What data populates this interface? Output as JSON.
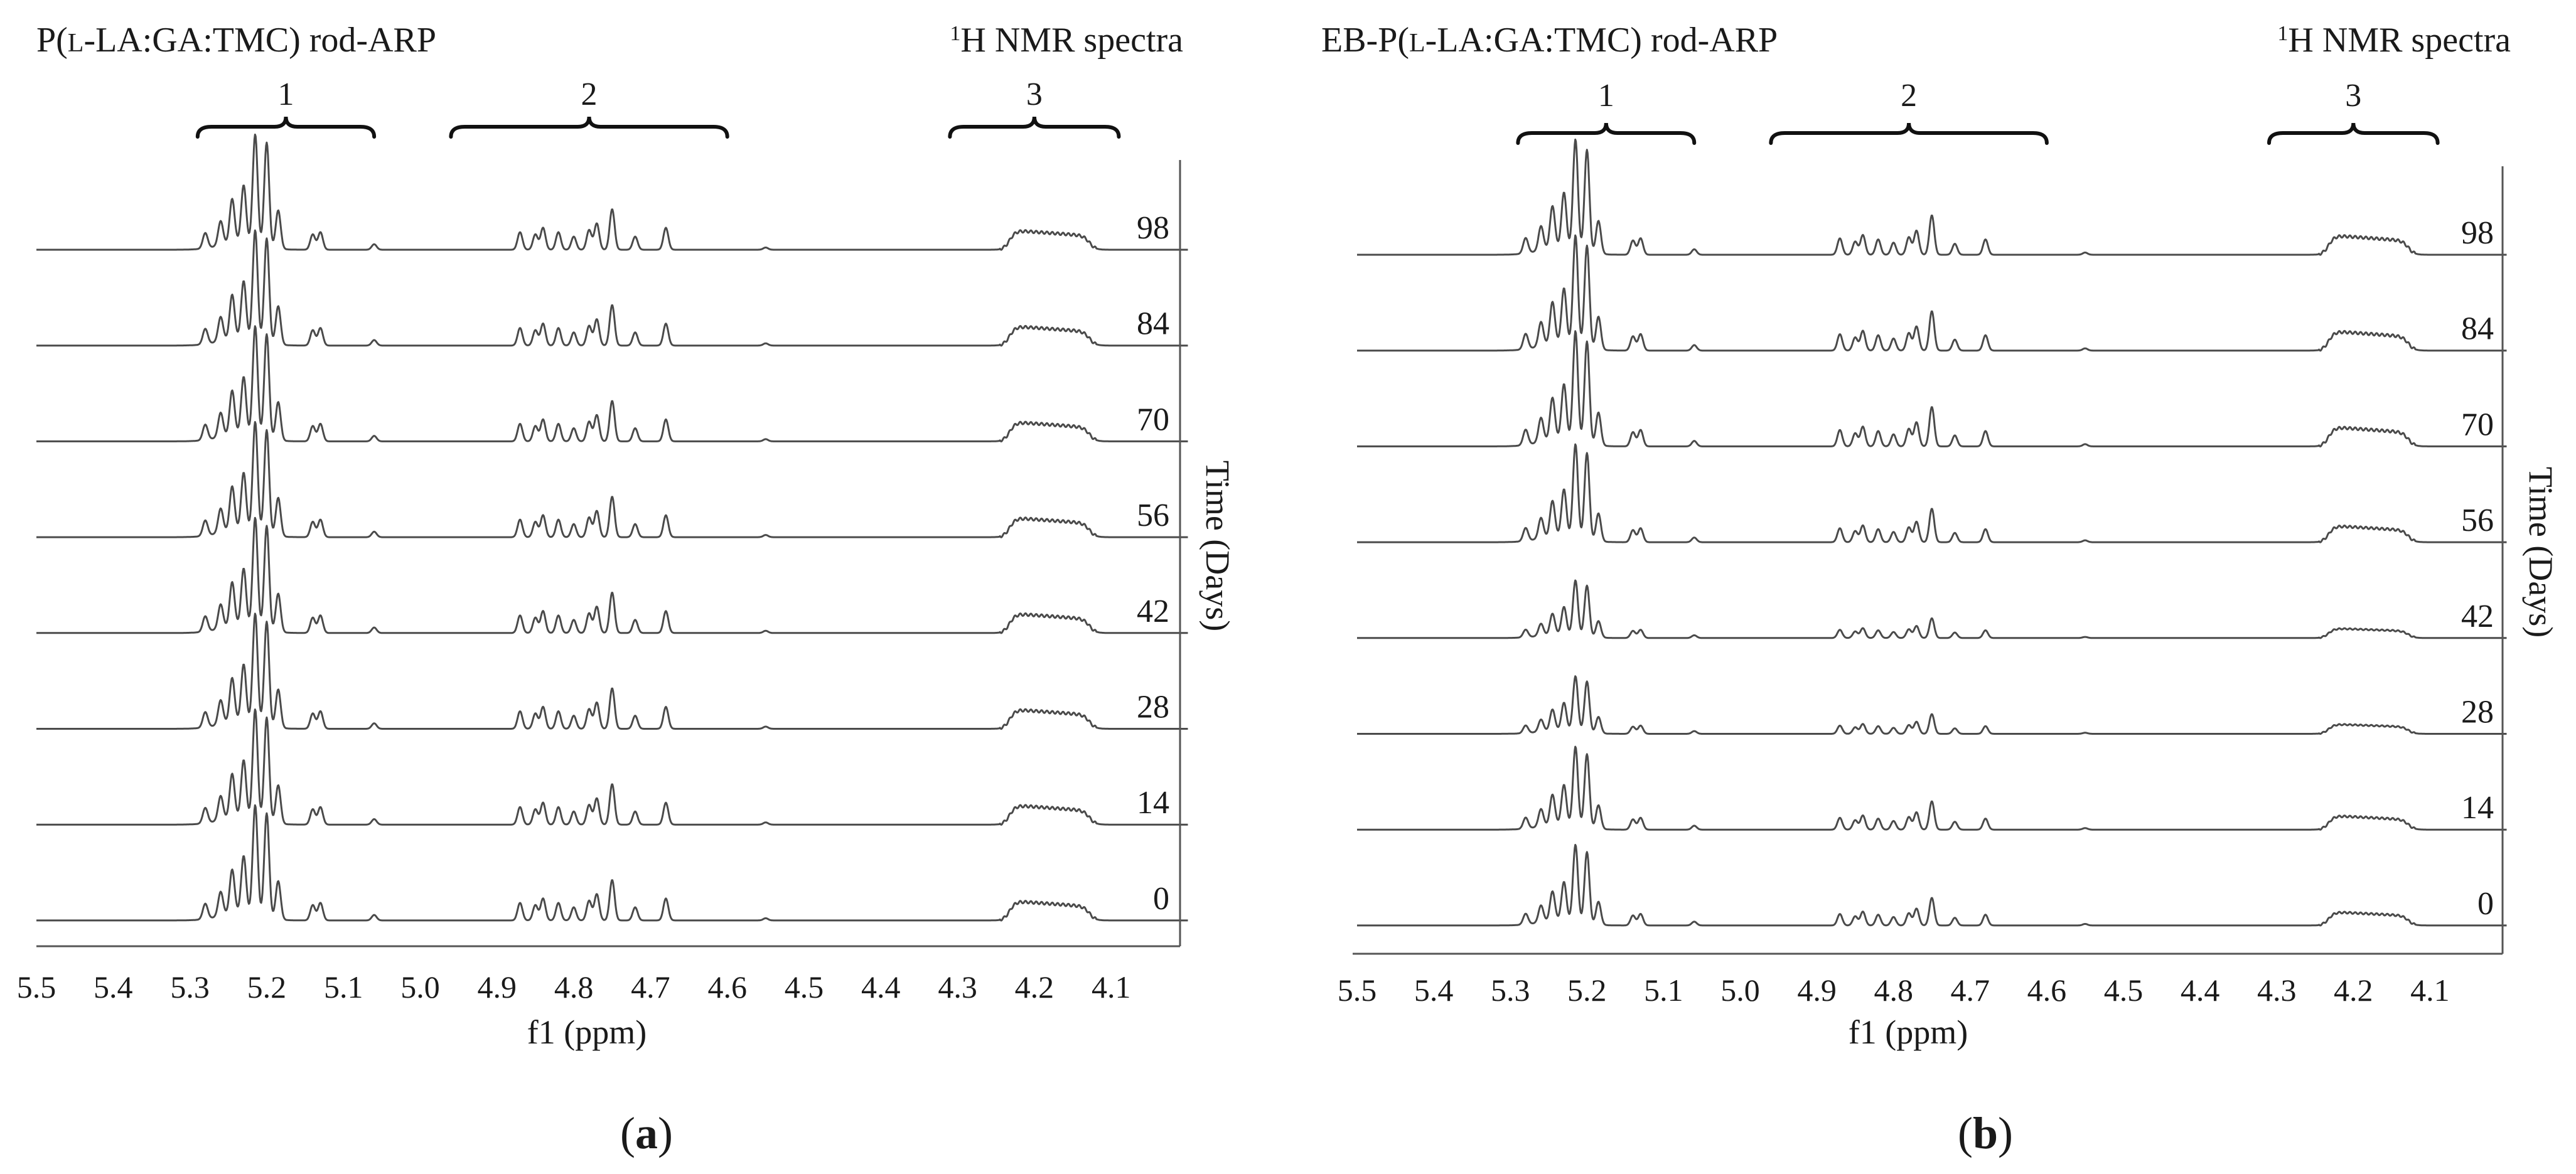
{
  "chart_data": [
    {
      "type": "line",
      "panel": "a",
      "caption": "a",
      "title": "P(L-LA:GA:TMC) rod-ARP",
      "title_prefix": "P(",
      "title_smallcaps": "l",
      "title_suffix": "-LA:GA:TMC) rod-ARP",
      "spectrum_label_sup": "1",
      "spectrum_label": "H NMR spectra",
      "xlabel": "f1 (ppm)",
      "ylabel": "Time (Days)",
      "xlim": [
        5.5,
        4.0
      ],
      "x_direction": "reversed",
      "x_ticks": [
        "5.5",
        "5.4",
        "5.3",
        "5.2",
        "5.1",
        "5.0",
        "4.9",
        "4.8",
        "4.7",
        "4.6",
        "4.5",
        "4.4",
        "4.3",
        "4.2",
        "4.1"
      ],
      "regions": [
        {
          "label": "1",
          "from": 5.29,
          "to": 5.06
        },
        {
          "label": "2",
          "from": 4.96,
          "to": 4.6
        },
        {
          "label": "3",
          "from": 4.31,
          "to": 4.09
        }
      ],
      "peaks": [
        {
          "ppm": 5.28,
          "rel": 0.14
        },
        {
          "ppm": 5.26,
          "rel": 0.22
        },
        {
          "ppm": 5.245,
          "rel": 0.4
        },
        {
          "ppm": 5.23,
          "rel": 0.52
        },
        {
          "ppm": 5.215,
          "rel": 1.0
        },
        {
          "ppm": 5.2,
          "rel": 0.95
        },
        {
          "ppm": 5.185,
          "rel": 0.35
        },
        {
          "ppm": 5.14,
          "rel": 0.14
        },
        {
          "ppm": 5.13,
          "rel": 0.16
        },
        {
          "ppm": 5.06,
          "rel": 0.05
        },
        {
          "ppm": 4.87,
          "rel": 0.16
        },
        {
          "ppm": 4.85,
          "rel": 0.14
        },
        {
          "ppm": 4.84,
          "rel": 0.2
        },
        {
          "ppm": 4.82,
          "rel": 0.16
        },
        {
          "ppm": 4.8,
          "rel": 0.12
        },
        {
          "ppm": 4.78,
          "rel": 0.18
        },
        {
          "ppm": 4.77,
          "rel": 0.24
        },
        {
          "ppm": 4.75,
          "rel": 0.37
        },
        {
          "ppm": 4.72,
          "rel": 0.12
        },
        {
          "ppm": 4.68,
          "rel": 0.2
        },
        {
          "ppm": 4.55,
          "rel": 0.02
        }
      ],
      "series": [
        {
          "name": "98",
          "day": 98,
          "scale": 1.0
        },
        {
          "name": "84",
          "day": 84,
          "scale": 1.0
        },
        {
          "name": "70",
          "day": 70,
          "scale": 1.0
        },
        {
          "name": "56",
          "day": 56,
          "scale": 1.0
        },
        {
          "name": "42",
          "day": 42,
          "scale": 1.0
        },
        {
          "name": "28",
          "day": 28,
          "scale": 1.0
        },
        {
          "name": "14",
          "day": 14,
          "scale": 1.0
        },
        {
          "name": "0",
          "day": 0,
          "scale": 1.0
        }
      ]
    },
    {
      "type": "line",
      "panel": "b",
      "caption": "b",
      "title": "EB-P(L-LA:GA:TMC) rod-ARP",
      "title_prefix": "EB-P(",
      "title_smallcaps": "l",
      "title_suffix": "-LA:GA:TMC) rod-ARP",
      "spectrum_label_sup": "1",
      "spectrum_label": "H NMR spectra",
      "xlabel": "f1 (ppm)",
      "ylabel": "Time (Days)",
      "xlim": [
        5.5,
        4.0
      ],
      "x_direction": "reversed",
      "x_ticks": [
        "5.5",
        "5.4",
        "5.3",
        "5.2",
        "5.1",
        "5.0",
        "4.9",
        "4.8",
        "4.7",
        "4.6",
        "4.5",
        "4.4",
        "4.3",
        "4.2",
        "4.1"
      ],
      "regions": [
        {
          "label": "1",
          "from": 5.29,
          "to": 5.06
        },
        {
          "label": "2",
          "from": 4.96,
          "to": 4.6
        },
        {
          "label": "3",
          "from": 4.31,
          "to": 4.09
        }
      ],
      "peaks": [
        {
          "ppm": 5.28,
          "rel": 0.14
        },
        {
          "ppm": 5.26,
          "rel": 0.22
        },
        {
          "ppm": 5.245,
          "rel": 0.38
        },
        {
          "ppm": 5.23,
          "rel": 0.5
        },
        {
          "ppm": 5.215,
          "rel": 1.0
        },
        {
          "ppm": 5.2,
          "rel": 0.93
        },
        {
          "ppm": 5.185,
          "rel": 0.3
        },
        {
          "ppm": 5.14,
          "rel": 0.13
        },
        {
          "ppm": 5.13,
          "rel": 0.15
        },
        {
          "ppm": 5.06,
          "rel": 0.05
        },
        {
          "ppm": 4.87,
          "rel": 0.15
        },
        {
          "ppm": 4.85,
          "rel": 0.12
        },
        {
          "ppm": 4.84,
          "rel": 0.18
        },
        {
          "ppm": 4.82,
          "rel": 0.14
        },
        {
          "ppm": 4.8,
          "rel": 0.11
        },
        {
          "ppm": 4.78,
          "rel": 0.16
        },
        {
          "ppm": 4.77,
          "rel": 0.22
        },
        {
          "ppm": 4.75,
          "rel": 0.36
        },
        {
          "ppm": 4.72,
          "rel": 0.1
        },
        {
          "ppm": 4.68,
          "rel": 0.14
        },
        {
          "ppm": 4.55,
          "rel": 0.02
        }
      ],
      "series": [
        {
          "name": "98",
          "day": 98,
          "scale": 1.0
        },
        {
          "name": "84",
          "day": 84,
          "scale": 1.0
        },
        {
          "name": "70",
          "day": 70,
          "scale": 1.0
        },
        {
          "name": "56",
          "day": 56,
          "scale": 0.85
        },
        {
          "name": "42",
          "day": 42,
          "scale": 0.5
        },
        {
          "name": "28",
          "day": 28,
          "scale": 0.5
        },
        {
          "name": "14",
          "day": 14,
          "scale": 0.72
        },
        {
          "name": "0",
          "day": 0,
          "scale": 0.7
        }
      ]
    }
  ]
}
